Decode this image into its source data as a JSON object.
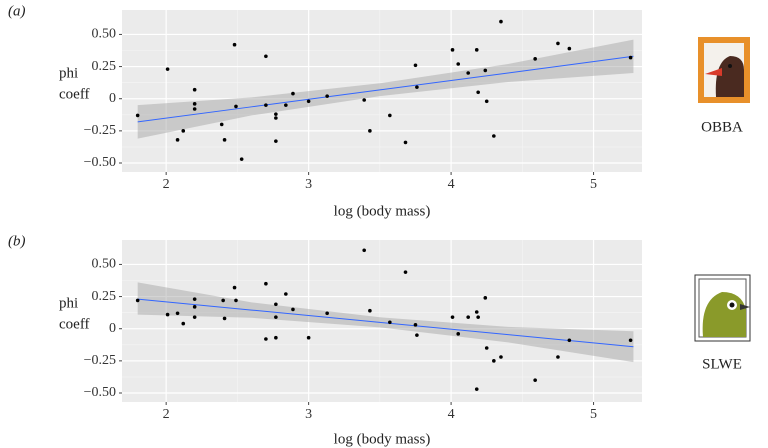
{
  "chart_data": [
    {
      "type": "scatter",
      "panel_label": "(a)",
      "ylabel": [
        "phi",
        "coeff"
      ],
      "xlabel": "log (body mass)",
      "species": "OBBA",
      "xlim": [
        1.69,
        5.34
      ],
      "ylim": [
        -0.57,
        0.69
      ],
      "xticks": [
        2,
        3,
        4,
        5
      ],
      "yticks": [
        {
          "value": -0.5,
          "label": "−0.50"
        },
        {
          "value": -0.25,
          "label": "−0.25"
        },
        0,
        0.25,
        {
          "value": 0.5,
          "label": "0.50"
        }
      ],
      "grid": true,
      "point_color": "#000000",
      "line_color": "#3366ff",
      "band_color": "#a0a0a0",
      "x": [
        1.8,
        2.01,
        2.08,
        2.12,
        2.2,
        2.2,
        2.2,
        2.39,
        2.41,
        2.48,
        2.49,
        2.53,
        2.7,
        2.7,
        2.77,
        2.77,
        2.77,
        2.84,
        2.89,
        3.0,
        3.13,
        3.39,
        3.43,
        3.57,
        3.68,
        3.75,
        3.76,
        4.01,
        4.05,
        4.12,
        4.18,
        4.19,
        4.24,
        4.25,
        4.3,
        4.35,
        4.59,
        4.75,
        4.83,
        5.26
      ],
      "y": [
        -0.13,
        0.23,
        -0.32,
        -0.25,
        0.07,
        -0.04,
        -0.08,
        -0.2,
        -0.32,
        0.42,
        -0.06,
        -0.47,
        0.33,
        -0.05,
        -0.12,
        -0.15,
        -0.33,
        -0.05,
        0.04,
        -0.02,
        0.02,
        -0.01,
        -0.25,
        -0.13,
        -0.34,
        0.26,
        0.09,
        0.38,
        0.27,
        0.2,
        0.38,
        0.05,
        0.22,
        -0.02,
        -0.29,
        0.6,
        0.31,
        0.43,
        0.39,
        0.32
      ],
      "fit": {
        "x": [
          1.8,
          2.6,
          3.5,
          4.4,
          5.28
        ],
        "y": [
          -0.18,
          -0.063,
          0.069,
          0.2,
          0.33
        ],
        "lower": [
          -0.31,
          -0.13,
          0.02,
          0.13,
          0.2
        ],
        "upper": [
          -0.05,
          0.01,
          0.12,
          0.27,
          0.46
        ]
      }
    },
    {
      "type": "scatter",
      "panel_label": "(b)",
      "ylabel": [
        "phi",
        "coeff"
      ],
      "xlabel": "log (body mass)",
      "species": "SLWE",
      "xlim": [
        1.69,
        5.34
      ],
      "ylim": [
        -0.57,
        0.69
      ],
      "xticks": [
        2,
        3,
        4,
        5
      ],
      "yticks": [
        {
          "value": -0.5,
          "label": "−0.50"
        },
        {
          "value": -0.25,
          "label": "−0.25"
        },
        0,
        0.25,
        {
          "value": 0.5,
          "label": "0.50"
        }
      ],
      "grid": true,
      "point_color": "#000000",
      "line_color": "#3366ff",
      "band_color": "#a0a0a0",
      "x": [
        1.8,
        2.01,
        2.08,
        2.12,
        2.2,
        2.2,
        2.2,
        2.4,
        2.41,
        2.48,
        2.49,
        2.7,
        2.7,
        2.77,
        2.77,
        2.77,
        2.84,
        2.89,
        3.0,
        3.13,
        3.39,
        3.43,
        3.57,
        3.68,
        3.75,
        3.76,
        4.01,
        4.05,
        4.12,
        4.18,
        4.18,
        4.19,
        4.24,
        4.25,
        4.3,
        4.35,
        4.59,
        4.75,
        4.83,
        5.26
      ],
      "y": [
        0.22,
        0.11,
        0.12,
        0.04,
        0.23,
        0.17,
        0.09,
        0.22,
        0.08,
        0.32,
        0.22,
        0.35,
        -0.08,
        0.19,
        0.09,
        -0.07,
        0.27,
        0.15,
        -0.07,
        0.12,
        0.61,
        0.14,
        0.05,
        0.44,
        0.03,
        -0.05,
        0.09,
        -0.04,
        0.09,
        0.13,
        -0.47,
        0.09,
        0.24,
        -0.15,
        -0.25,
        -0.22,
        -0.4,
        -0.22,
        -0.09,
        -0.09
      ],
      "fit": {
        "x": [
          1.8,
          2.6,
          3.5,
          4.4,
          5.28
        ],
        "y": [
          0.23,
          0.145,
          0.049,
          -0.046,
          -0.14
        ],
        "lower": [
          0.11,
          0.085,
          0.01,
          -0.106,
          -0.26
        ],
        "upper": [
          0.36,
          0.205,
          0.089,
          0.014,
          -0.02
        ]
      }
    }
  ]
}
